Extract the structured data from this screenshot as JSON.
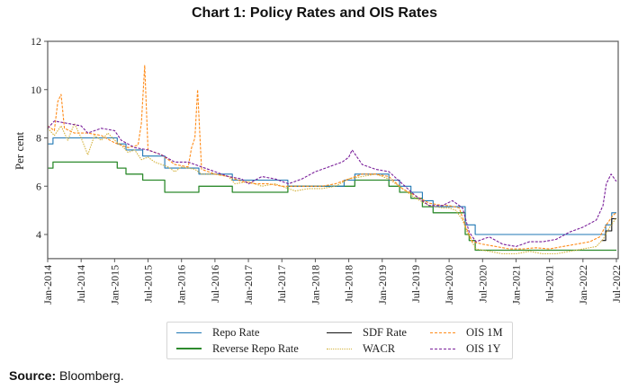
{
  "chart_data": {
    "type": "line",
    "title": "Chart 1: Policy Rates and OIS Rates",
    "xlabel": "",
    "ylabel": "Per cent",
    "ylim": [
      3,
      12
    ],
    "xlim": [
      2014.0,
      2022.5
    ],
    "yticks": [
      4,
      6,
      8,
      10,
      12
    ],
    "xticks": [
      {
        "label": "Jan-2014",
        "t": 2014.0
      },
      {
        "label": "Jul-2014",
        "t": 2014.5
      },
      {
        "label": "Jan-2015",
        "t": 2015.0
      },
      {
        "label": "Jul-2015",
        "t": 2015.5
      },
      {
        "label": "Jan-2016",
        "t": 2016.0
      },
      {
        "label": "Jul-2016",
        "t": 2016.5
      },
      {
        "label": "Jan-2017",
        "t": 2017.0
      },
      {
        "label": "Jul-2017",
        "t": 2017.5
      },
      {
        "label": "Jan-2018",
        "t": 2018.0
      },
      {
        "label": "Jul-2018",
        "t": 2018.5
      },
      {
        "label": "Jan-2019",
        "t": 2019.0
      },
      {
        "label": "Jul-2019",
        "t": 2019.5
      },
      {
        "label": "Jan-2020",
        "t": 2020.0
      },
      {
        "label": "Jul-2020",
        "t": 2020.5
      },
      {
        "label": "Jan-2021",
        "t": 2021.0
      },
      {
        "label": "Jul-2021",
        "t": 2021.5
      },
      {
        "label": "Jan-2022",
        "t": 2022.0
      },
      {
        "label": "Jul-2022",
        "t": 2022.5
      }
    ],
    "grid": false,
    "legend_position": "bottom-center",
    "series": [
      {
        "name": "Repo Rate",
        "color": "#1f77b4",
        "style": "solid",
        "step": true,
        "points": [
          [
            2014.0,
            7.75
          ],
          [
            2014.08,
            8.0
          ],
          [
            2015.04,
            7.75
          ],
          [
            2015.17,
            7.5
          ],
          [
            2015.42,
            7.25
          ],
          [
            2015.75,
            6.75
          ],
          [
            2016.26,
            6.5
          ],
          [
            2016.76,
            6.25
          ],
          [
            2017.59,
            6.0
          ],
          [
            2018.43,
            6.25
          ],
          [
            2018.59,
            6.5
          ],
          [
            2019.1,
            6.25
          ],
          [
            2019.26,
            6.0
          ],
          [
            2019.43,
            5.75
          ],
          [
            2019.6,
            5.4
          ],
          [
            2019.76,
            5.15
          ],
          [
            2020.24,
            4.4
          ],
          [
            2020.39,
            4.0
          ],
          [
            2022.34,
            4.4
          ],
          [
            2022.43,
            4.9
          ],
          [
            2022.5,
            4.9
          ]
        ]
      },
      {
        "name": "Reverse Repo Rate",
        "color": "#2e8b2e",
        "style": "solid",
        "step": true,
        "points": [
          [
            2014.0,
            6.75
          ],
          [
            2014.08,
            7.0
          ],
          [
            2015.04,
            6.75
          ],
          [
            2015.17,
            6.5
          ],
          [
            2015.42,
            6.25
          ],
          [
            2015.75,
            5.75
          ],
          [
            2016.26,
            6.0
          ],
          [
            2016.76,
            5.75
          ],
          [
            2017.59,
            6.0
          ],
          [
            2018.43,
            6.0
          ],
          [
            2018.59,
            6.25
          ],
          [
            2019.1,
            6.0
          ],
          [
            2019.26,
            5.75
          ],
          [
            2019.43,
            5.5
          ],
          [
            2019.6,
            5.15
          ],
          [
            2019.76,
            4.9
          ],
          [
            2020.24,
            4.0
          ],
          [
            2020.3,
            3.75
          ],
          [
            2020.39,
            3.35
          ],
          [
            2022.5,
            3.35
          ]
        ]
      },
      {
        "name": "SDF Rate",
        "color": "#111111",
        "style": "solid",
        "step": true,
        "points": [
          [
            2022.28,
            3.75
          ],
          [
            2022.28,
            3.75
          ],
          [
            2022.34,
            4.15
          ],
          [
            2022.43,
            4.65
          ],
          [
            2022.5,
            4.65
          ]
        ]
      },
      {
        "name": "WACR",
        "color": "#d4b23a",
        "style": "dotted",
        "points": [
          [
            2014.0,
            8.4
          ],
          [
            2014.1,
            8.1
          ],
          [
            2014.2,
            8.5
          ],
          [
            2014.3,
            7.9
          ],
          [
            2014.4,
            8.6
          ],
          [
            2014.5,
            8.0
          ],
          [
            2014.6,
            7.3
          ],
          [
            2014.7,
            8.1
          ],
          [
            2014.8,
            7.9
          ],
          [
            2014.9,
            8.2
          ],
          [
            2015.0,
            7.9
          ],
          [
            2015.1,
            7.7
          ],
          [
            2015.2,
            7.4
          ],
          [
            2015.3,
            7.5
          ],
          [
            2015.4,
            7.1
          ],
          [
            2015.5,
            7.2
          ],
          [
            2015.6,
            7.0
          ],
          [
            2015.7,
            6.9
          ],
          [
            2015.8,
            6.8
          ],
          [
            2015.9,
            6.6
          ],
          [
            2016.0,
            6.8
          ],
          [
            2016.2,
            6.7
          ],
          [
            2016.3,
            6.5
          ],
          [
            2016.5,
            6.5
          ],
          [
            2016.7,
            6.4
          ],
          [
            2016.8,
            6.1
          ],
          [
            2017.0,
            6.2
          ],
          [
            2017.2,
            6.0
          ],
          [
            2017.4,
            6.1
          ],
          [
            2017.5,
            6.0
          ],
          [
            2017.7,
            5.8
          ],
          [
            2017.9,
            5.9
          ],
          [
            2018.1,
            5.9
          ],
          [
            2018.3,
            6.0
          ],
          [
            2018.5,
            6.3
          ],
          [
            2018.7,
            6.4
          ],
          [
            2018.9,
            6.5
          ],
          [
            2019.0,
            6.4
          ],
          [
            2019.1,
            6.3
          ],
          [
            2019.3,
            5.9
          ],
          [
            2019.5,
            5.5
          ],
          [
            2019.7,
            5.2
          ],
          [
            2019.9,
            5.1
          ],
          [
            2020.0,
            5.1
          ],
          [
            2020.1,
            5.0
          ],
          [
            2020.2,
            4.6
          ],
          [
            2020.3,
            3.9
          ],
          [
            2020.4,
            3.4
          ],
          [
            2020.6,
            3.3
          ],
          [
            2020.8,
            3.2
          ],
          [
            2021.0,
            3.2
          ],
          [
            2021.2,
            3.3
          ],
          [
            2021.4,
            3.2
          ],
          [
            2021.6,
            3.2
          ],
          [
            2021.8,
            3.3
          ],
          [
            2022.0,
            3.4
          ],
          [
            2022.2,
            3.5
          ],
          [
            2022.3,
            3.8
          ],
          [
            2022.4,
            4.3
          ],
          [
            2022.5,
            4.7
          ]
        ]
      },
      {
        "name": "OIS 1M",
        "color": "#ff8c1a",
        "style": "dashed",
        "points": [
          [
            2014.0,
            8.5
          ],
          [
            2014.1,
            8.3
          ],
          [
            2014.15,
            9.5
          ],
          [
            2014.2,
            9.8
          ],
          [
            2014.25,
            8.4
          ],
          [
            2014.4,
            8.2
          ],
          [
            2014.6,
            8.2
          ],
          [
            2014.8,
            8.1
          ],
          [
            2015.0,
            7.8
          ],
          [
            2015.2,
            7.6
          ],
          [
            2015.35,
            7.7
          ],
          [
            2015.4,
            8.6
          ],
          [
            2015.45,
            11.0
          ],
          [
            2015.5,
            7.5
          ],
          [
            2015.7,
            7.3
          ],
          [
            2015.9,
            6.9
          ],
          [
            2016.1,
            6.8
          ],
          [
            2016.15,
            7.6
          ],
          [
            2016.2,
            8.0
          ],
          [
            2016.24,
            10.0
          ],
          [
            2016.3,
            6.7
          ],
          [
            2016.5,
            6.5
          ],
          [
            2016.7,
            6.4
          ],
          [
            2016.9,
            6.2
          ],
          [
            2017.1,
            6.1
          ],
          [
            2017.3,
            6.1
          ],
          [
            2017.5,
            6.0
          ],
          [
            2017.7,
            6.0
          ],
          [
            2017.9,
            6.0
          ],
          [
            2018.1,
            6.0
          ],
          [
            2018.3,
            6.1
          ],
          [
            2018.5,
            6.3
          ],
          [
            2018.7,
            6.5
          ],
          [
            2018.9,
            6.5
          ],
          [
            2019.1,
            6.4
          ],
          [
            2019.3,
            5.9
          ],
          [
            2019.5,
            5.6
          ],
          [
            2019.7,
            5.3
          ],
          [
            2019.9,
            5.2
          ],
          [
            2020.0,
            5.2
          ],
          [
            2020.15,
            5.1
          ],
          [
            2020.25,
            4.3
          ],
          [
            2020.35,
            3.7
          ],
          [
            2020.5,
            3.6
          ],
          [
            2020.7,
            3.5
          ],
          [
            2020.9,
            3.4
          ],
          [
            2021.1,
            3.4
          ],
          [
            2021.3,
            3.45
          ],
          [
            2021.5,
            3.4
          ],
          [
            2021.7,
            3.5
          ],
          [
            2021.9,
            3.6
          ],
          [
            2022.1,
            3.7
          ],
          [
            2022.25,
            3.9
          ],
          [
            2022.35,
            4.4
          ],
          [
            2022.45,
            4.8
          ],
          [
            2022.5,
            4.9
          ]
        ]
      },
      {
        "name": "OIS 1Y",
        "color": "#7a1f9a",
        "style": "dashed",
        "points": [
          [
            2014.0,
            8.4
          ],
          [
            2014.1,
            8.7
          ],
          [
            2014.3,
            8.6
          ],
          [
            2014.5,
            8.5
          ],
          [
            2014.6,
            8.2
          ],
          [
            2014.8,
            8.4
          ],
          [
            2015.0,
            8.3
          ],
          [
            2015.1,
            7.9
          ],
          [
            2015.3,
            7.6
          ],
          [
            2015.5,
            7.5
          ],
          [
            2015.7,
            7.3
          ],
          [
            2015.9,
            7.0
          ],
          [
            2016.1,
            7.0
          ],
          [
            2016.3,
            6.8
          ],
          [
            2016.5,
            6.6
          ],
          [
            2016.7,
            6.4
          ],
          [
            2016.9,
            6.3
          ],
          [
            2017.0,
            6.1
          ],
          [
            2017.2,
            6.4
          ],
          [
            2017.4,
            6.3
          ],
          [
            2017.6,
            6.1
          ],
          [
            2017.8,
            6.3
          ],
          [
            2018.0,
            6.6
          ],
          [
            2018.2,
            6.8
          ],
          [
            2018.4,
            7.0
          ],
          [
            2018.5,
            7.2
          ],
          [
            2018.55,
            7.5
          ],
          [
            2018.7,
            6.9
          ],
          [
            2018.9,
            6.7
          ],
          [
            2019.1,
            6.6
          ],
          [
            2019.3,
            6.1
          ],
          [
            2019.5,
            5.6
          ],
          [
            2019.7,
            5.2
          ],
          [
            2019.9,
            5.2
          ],
          [
            2020.05,
            5.4
          ],
          [
            2020.2,
            5.1
          ],
          [
            2020.3,
            4.1
          ],
          [
            2020.4,
            3.7
          ],
          [
            2020.6,
            3.9
          ],
          [
            2020.8,
            3.6
          ],
          [
            2021.0,
            3.5
          ],
          [
            2021.2,
            3.7
          ],
          [
            2021.4,
            3.7
          ],
          [
            2021.6,
            3.8
          ],
          [
            2021.8,
            4.1
          ],
          [
            2022.0,
            4.3
          ],
          [
            2022.2,
            4.6
          ],
          [
            2022.3,
            5.2
          ],
          [
            2022.35,
            6.1
          ],
          [
            2022.42,
            6.5
          ],
          [
            2022.5,
            6.2
          ]
        ]
      }
    ]
  },
  "legend": {
    "items": [
      "Repo Rate",
      "Reverse Repo Rate",
      "SDF Rate",
      "WACR",
      "OIS 1M",
      "OIS 1Y"
    ]
  },
  "source": {
    "label": "Source:",
    "text": "Bloomberg."
  }
}
